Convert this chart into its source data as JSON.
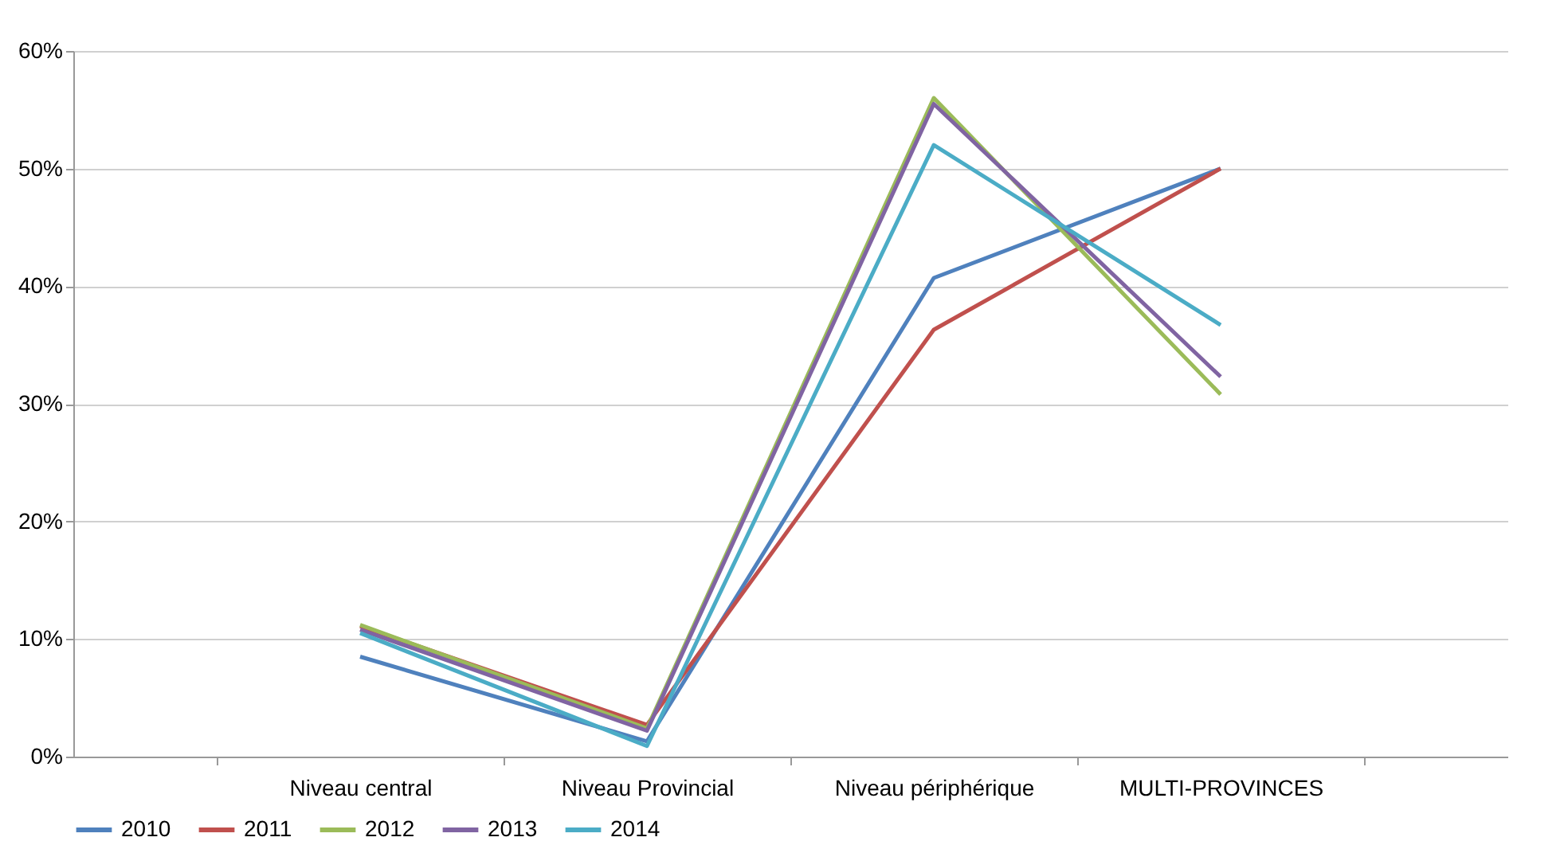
{
  "chart_data": {
    "type": "line",
    "categories": [
      "Niveau central",
      "Niveau Provincial",
      "Niveau périphérique",
      "MULTI-PROVINCES"
    ],
    "series": [
      {
        "name": "2010",
        "color": "#4f81bd",
        "values": [
          8.5,
          1.3,
          40.7,
          50
        ]
      },
      {
        "name": "2011",
        "color": "#c0504d",
        "values": [
          11.1,
          2.7,
          36.3,
          50
        ]
      },
      {
        "name": "2012",
        "color": "#9bbb59",
        "values": [
          11.2,
          2.4,
          56,
          30.8
        ]
      },
      {
        "name": "2013",
        "color": "#8064a2",
        "values": [
          10.8,
          2.2,
          55.5,
          32.3
        ]
      },
      {
        "name": "2014",
        "color": "#4bacc6",
        "values": [
          10.5,
          0.9,
          52,
          36.7
        ]
      }
    ],
    "ylim": [
      0,
      60
    ],
    "yticks": [
      {
        "value": 0,
        "label": "0%"
      },
      {
        "value": 10,
        "label": "10%"
      },
      {
        "value": 20,
        "label": "20%"
      },
      {
        "value": 30,
        "label": "30%"
      },
      {
        "value": 40,
        "label": "40%"
      },
      {
        "value": 50,
        "label": "50%"
      },
      {
        "value": 60,
        "label": "60%"
      }
    ],
    "grid": "y",
    "legend": "bottom"
  }
}
